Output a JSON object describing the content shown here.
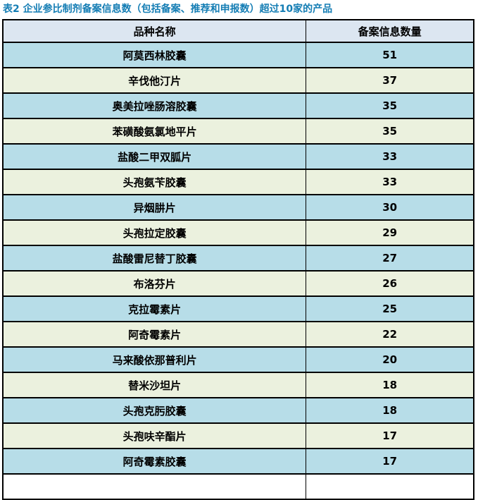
{
  "title": "表2 企业参比制剂备案信息数（包括备案、推荐和申报数）超过10家的产品",
  "table": {
    "columns": [
      "品种名称",
      "备案信息数量"
    ],
    "rows": [
      {
        "name": "阿莫西林胶囊",
        "count": "51"
      },
      {
        "name": "辛伐他汀片",
        "count": "37"
      },
      {
        "name": "奥美拉唑肠溶胶囊",
        "count": "35"
      },
      {
        "name": "苯磺酸氨氯地平片",
        "count": "35"
      },
      {
        "name": "盐酸二甲双胍片",
        "count": "33"
      },
      {
        "name": "头孢氨苄胶囊",
        "count": "33"
      },
      {
        "name": "异烟肼片",
        "count": "30"
      },
      {
        "name": "头孢拉定胶囊",
        "count": "29"
      },
      {
        "name": "盐酸雷尼替丁胶囊",
        "count": "27"
      },
      {
        "name": "布洛芬片",
        "count": "26"
      },
      {
        "name": "克拉霉素片",
        "count": "25"
      },
      {
        "name": "阿奇霉素片",
        "count": "22"
      },
      {
        "name": "马来酸依那普利片",
        "count": "20"
      },
      {
        "name": "替米沙坦片",
        "count": "18"
      },
      {
        "name": "头孢克肟胶囊",
        "count": "18"
      },
      {
        "name": "头孢呋辛酯片",
        "count": "17"
      },
      {
        "name": "阿奇霉素胶囊",
        "count": "17"
      }
    ]
  },
  "chart_data": {
    "type": "table",
    "title": "表2 企业参比制剂备案信息数（包括备案、推荐和申报数）超过10家的产品",
    "categories": [
      "阿莫西林胶囊",
      "辛伐他汀片",
      "奥美拉唑肠溶胶囊",
      "苯磺酸氨氯地平片",
      "盐酸二甲双胍片",
      "头孢氨苄胶囊",
      "异烟肼片",
      "头孢拉定胶囊",
      "盐酸雷尼替丁胶囊",
      "布洛芬片",
      "克拉霉素片",
      "阿奇霉素片",
      "马来酸依那普利片",
      "替米沙坦片",
      "头孢克肟胶囊",
      "头孢呋辛酯片",
      "阿奇霉素胶囊"
    ],
    "values": [
      51,
      37,
      35,
      35,
      33,
      33,
      30,
      29,
      27,
      26,
      25,
      22,
      20,
      18,
      18,
      17,
      17
    ]
  },
  "colors": {
    "title": "#147DB4",
    "header_bg": "#DCE6F1",
    "row_blue": "#B7DDE8",
    "row_green": "#EBF1DE",
    "border": "#000000"
  }
}
